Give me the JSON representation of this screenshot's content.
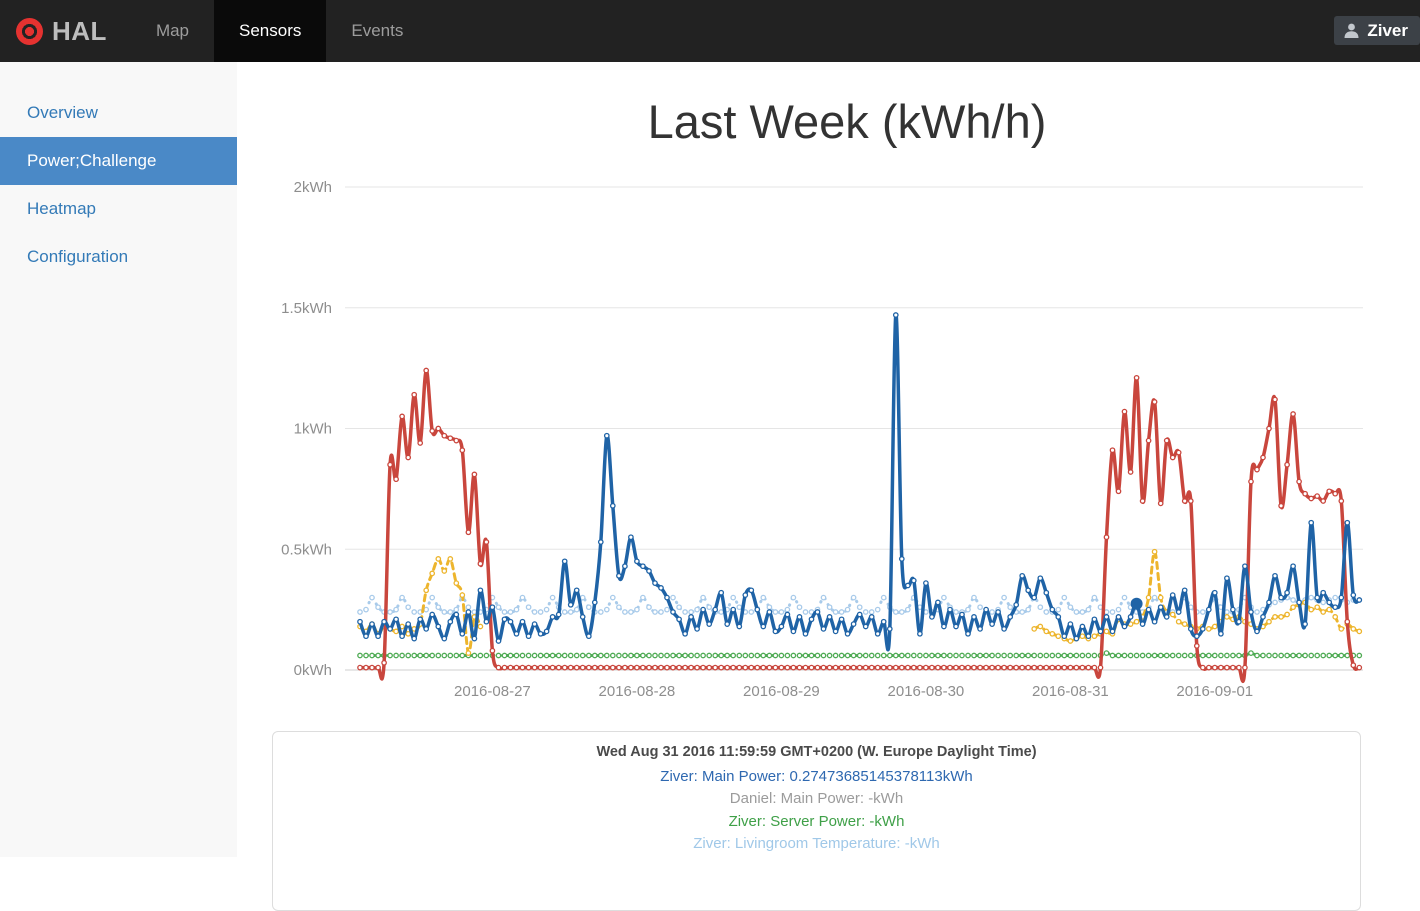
{
  "navbar": {
    "brand": "HAL",
    "tabs": [
      {
        "label": "Map",
        "active": false
      },
      {
        "label": "Sensors",
        "active": true
      },
      {
        "label": "Events",
        "active": false
      }
    ],
    "user": "Ziver"
  },
  "sidebar": {
    "items": [
      {
        "label": "Overview",
        "active": false
      },
      {
        "label": "Power;Challenge",
        "active": true
      },
      {
        "label": "Heatmap",
        "active": false
      },
      {
        "label": "Configuration",
        "active": false
      }
    ]
  },
  "chart_data": {
    "type": "line",
    "title": "Last Week (kWh/h)",
    "ylim": [
      0,
      2
    ],
    "grid": true,
    "y_ticks": [
      {
        "label": "0kWh",
        "value": 0
      },
      {
        "label": "0.5kWh",
        "value": 0.5
      },
      {
        "label": "1kWh",
        "value": 1
      },
      {
        "label": "1.5kWh",
        "value": 1.5
      },
      {
        "label": "2kWh",
        "value": 2
      }
    ],
    "x_ticks": [
      {
        "label": "2016-08-27",
        "index": 22
      },
      {
        "label": "2016-08-28",
        "index": 46
      },
      {
        "label": "2016-08-29",
        "index": 70
      },
      {
        "label": "2016-08-30",
        "index": 94
      },
      {
        "label": "2016-08-31",
        "index": 118
      },
      {
        "label": "2016-09-01",
        "index": 142
      }
    ],
    "unit": "kWh",
    "resolution": "hourly",
    "series": [
      {
        "id": "server-power-green",
        "name": "Ziver: Server Power",
        "color": "#4fab54",
        "style": "dotted",
        "values": [
          0.06,
          0.06,
          0.06,
          0.06,
          0.06,
          0.06,
          0.06,
          0.06,
          0.06,
          0.06,
          0.06,
          0.06,
          0.06,
          0.06,
          0.06,
          0.06,
          0.06,
          0.06,
          0.06,
          0.06,
          0.06,
          0.06,
          0.06,
          0.06,
          0.06,
          0.06,
          0.06,
          0.06,
          0.06,
          0.06,
          0.06,
          0.06,
          0.06,
          0.06,
          0.06,
          0.06,
          0.06,
          0.06,
          0.06,
          0.06,
          0.06,
          0.06,
          0.06,
          0.06,
          0.06,
          0.06,
          0.06,
          0.06,
          0.06,
          0.06,
          0.06,
          0.06,
          0.06,
          0.06,
          0.06,
          0.06,
          0.06,
          0.06,
          0.06,
          0.06,
          0.06,
          0.06,
          0.06,
          0.06,
          0.06,
          0.06,
          0.06,
          0.06,
          0.06,
          0.06,
          0.06,
          0.06,
          0.06,
          0.06,
          0.06,
          0.06,
          0.06,
          0.06,
          0.06,
          0.06,
          0.06,
          0.06,
          0.06,
          0.06,
          0.06,
          0.06,
          0.06,
          0.06,
          0.06,
          0.06,
          0.06,
          0.06,
          0.06,
          0.06,
          0.06,
          0.06,
          0.06,
          0.06,
          0.06,
          0.06,
          0.06,
          0.06,
          0.06,
          0.06,
          0.06,
          0.06,
          0.06,
          0.06,
          0.06,
          0.06,
          0.06,
          0.06,
          0.06,
          0.06,
          0.06,
          0.06,
          0.06,
          0.06,
          0.06,
          0.06,
          0.06,
          0.06,
          0.06,
          0.06,
          0.07,
          0.06,
          0.06,
          0.06,
          0.06,
          0.06,
          0.06,
          0.06,
          0.06,
          0.06,
          0.06,
          0.06,
          0.06,
          0.06,
          0.06,
          0.06,
          0.06,
          0.06,
          0.06,
          0.06,
          0.06,
          0.06,
          0.06,
          0.06,
          0.07,
          0.06,
          0.06,
          0.06,
          0.06,
          0.06,
          0.06,
          0.06,
          0.06,
          0.06,
          0.06,
          0.06,
          0.06,
          0.06,
          0.06,
          0.06,
          0.06,
          0.06,
          0.06
        ]
      },
      {
        "id": "livingroom-temp-lightblue",
        "name": "Ziver: Livingroom Temperature",
        "color": "#a9cbea",
        "style": "dotted",
        "values": [
          0.24,
          0.25,
          0.3,
          0.26,
          0.24,
          0.24,
          0.25,
          0.3,
          0.26,
          0.24,
          0.24,
          0.25,
          0.3,
          0.26,
          0.24,
          0.24,
          0.25,
          0.3,
          0.26,
          0.24,
          0.24,
          0.25,
          0.3,
          0.26,
          0.24,
          0.24,
          0.25,
          0.3,
          0.26,
          0.24,
          0.24,
          0.25,
          0.3,
          0.26,
          0.24,
          0.24,
          0.25,
          0.3,
          0.26,
          0.24,
          0.24,
          0.25,
          0.3,
          0.26,
          0.24,
          0.24,
          0.25,
          0.3,
          0.26,
          0.24,
          0.24,
          0.25,
          0.3,
          0.26,
          0.24,
          0.24,
          0.25,
          0.3,
          0.26,
          0.24,
          0.24,
          0.25,
          0.3,
          0.26,
          0.24,
          0.24,
          0.25,
          0.3,
          0.26,
          0.24,
          0.24,
          0.25,
          0.3,
          0.26,
          0.24,
          0.24,
          0.25,
          0.3,
          0.26,
          0.24,
          0.24,
          0.25,
          0.3,
          0.26,
          0.24,
          0.24,
          0.25,
          0.3,
          0.26,
          0.24,
          0.24,
          0.25,
          0.3,
          0.26,
          0.24,
          0.24,
          0.25,
          0.3,
          0.26,
          0.24,
          0.24,
          0.25,
          0.3,
          0.26,
          0.24,
          0.24,
          0.25,
          0.3,
          0.26,
          0.24,
          0.24,
          0.25,
          0.3,
          0.26,
          0.24,
          0.24,
          0.25,
          0.3,
          0.26,
          0.24,
          0.24,
          0.25,
          0.3,
          0.26,
          0.24,
          0.24,
          0.25,
          0.3,
          0.26,
          0.24,
          0.24,
          0.25,
          0.3,
          0.26,
          0.24,
          0.24,
          0.25,
          0.3,
          0.26,
          0.24,
          0.24,
          0.25,
          0.3,
          0.26,
          0.24,
          0.24,
          0.25,
          0.3,
          0.26,
          0.24,
          0.25,
          0.27,
          0.28,
          0.29,
          0.3,
          0.29,
          0.28,
          0.29,
          0.3,
          0.29,
          0.28,
          0.29,
          0.3,
          0.29,
          0.28,
          0.29,
          0.29
        ]
      },
      {
        "id": "yellow-series",
        "name": "",
        "color": "#edb52d",
        "style": "dashed",
        "values": [
          0.18,
          0.16,
          0.19,
          0.15,
          0.18,
          0.17,
          0.16,
          0.18,
          0.15,
          0.17,
          0.19,
          0.33,
          0.4,
          0.46,
          0.41,
          0.46,
          0.36,
          0.31,
          0.07,
          0.22,
          0.18,
          null,
          null,
          null,
          null,
          null,
          null,
          null,
          null,
          null,
          null,
          null,
          null,
          null,
          null,
          null,
          null,
          null,
          null,
          null,
          null,
          null,
          null,
          null,
          null,
          null,
          null,
          null,
          null,
          null,
          null,
          null,
          null,
          null,
          null,
          null,
          null,
          null,
          null,
          null,
          null,
          null,
          null,
          null,
          null,
          null,
          null,
          null,
          null,
          null,
          null,
          null,
          null,
          null,
          null,
          null,
          null,
          null,
          null,
          null,
          null,
          null,
          null,
          null,
          null,
          null,
          null,
          null,
          null,
          null,
          null,
          null,
          null,
          null,
          null,
          null,
          null,
          null,
          null,
          null,
          null,
          null,
          null,
          null,
          null,
          null,
          null,
          null,
          null,
          null,
          null,
          null,
          0.17,
          0.18,
          0.16,
          0.15,
          0.14,
          0.13,
          0.12,
          0.13,
          0.14,
          0.13,
          0.14,
          0.15,
          0.16,
          0.15,
          0.21,
          0.19,
          0.19,
          0.2,
          0.22,
          0.3,
          0.49,
          0.3,
          0.24,
          0.23,
          0.2,
          0.19,
          0.18,
          0.17,
          0.18,
          0.17,
          0.18,
          0.2,
          0.22,
          0.21,
          0.22,
          0.2,
          0.19,
          0.17,
          0.18,
          0.2,
          0.22,
          0.22,
          0.23,
          0.26,
          0.27,
          0.28,
          0.25,
          0.26,
          0.24,
          0.25,
          0.22,
          0.17,
          0.19,
          0.17,
          0.16
        ]
      },
      {
        "id": "red-series",
        "name": "",
        "color": "#c9463d",
        "style": "solid",
        "values": [
          0.01,
          0.01,
          0.01,
          0.01,
          0.03,
          0.85,
          0.79,
          1.05,
          0.88,
          1.14,
          0.94,
          1.24,
          0.99,
          1.0,
          0.97,
          0.96,
          0.95,
          0.91,
          0.57,
          0.81,
          0.44,
          0.53,
          0.08,
          0.01,
          0.01,
          0.01,
          0.01,
          0.01,
          0.01,
          0.01,
          0.01,
          0.01,
          0.01,
          0.01,
          0.01,
          0.01,
          0.01,
          0.01,
          0.01,
          0.01,
          0.01,
          0.01,
          0.01,
          0.01,
          0.01,
          0.01,
          0.01,
          0.01,
          0.01,
          0.01,
          0.01,
          0.01,
          0.01,
          0.01,
          0.01,
          0.01,
          0.01,
          0.01,
          0.01,
          0.01,
          0.01,
          0.01,
          0.01,
          0.01,
          0.01,
          0.01,
          0.01,
          0.01,
          0.01,
          0.01,
          0.01,
          0.01,
          0.01,
          0.01,
          0.01,
          0.01,
          0.01,
          0.01,
          0.01,
          0.01,
          0.01,
          0.01,
          0.01,
          0.01,
          0.01,
          0.01,
          0.01,
          0.01,
          0.01,
          0.01,
          0.01,
          0.01,
          0.01,
          0.01,
          0.01,
          0.01,
          0.01,
          0.01,
          0.01,
          0.01,
          0.01,
          0.01,
          0.01,
          0.01,
          0.01,
          0.01,
          0.01,
          0.01,
          0.01,
          0.01,
          0.01,
          0.01,
          0.01,
          0.01,
          0.01,
          0.01,
          0.01,
          0.01,
          0.01,
          0.01,
          0.01,
          0.01,
          0.01,
          0.01,
          0.55,
          0.91,
          0.74,
          1.07,
          0.82,
          1.21,
          0.7,
          0.95,
          1.11,
          0.69,
          0.95,
          0.88,
          0.9,
          0.7,
          0.7,
          0.1,
          0.01,
          0.01,
          0.01,
          0.01,
          0.01,
          0.01,
          0.01,
          0.01,
          0.78,
          0.83,
          0.88,
          1.0,
          1.12,
          0.68,
          0.85,
          1.06,
          0.78,
          0.73,
          0.71,
          0.72,
          0.7,
          0.74,
          0.73,
          0.7,
          0.2,
          0.02,
          0.01
        ]
      },
      {
        "id": "main-power-blue",
        "name": "Ziver: Main Power",
        "color": "#1f63a6",
        "style": "solid",
        "selected_index": 129,
        "values": [
          0.2,
          0.14,
          0.19,
          0.14,
          0.2,
          0.17,
          0.21,
          0.14,
          0.19,
          0.13,
          0.21,
          0.17,
          0.23,
          0.18,
          0.13,
          0.2,
          0.23,
          0.15,
          0.24,
          0.13,
          0.33,
          0.2,
          0.26,
          0.12,
          0.21,
          0.2,
          0.15,
          0.2,
          0.14,
          0.19,
          0.15,
          0.16,
          0.22,
          0.23,
          0.45,
          0.27,
          0.33,
          0.22,
          0.14,
          0.28,
          0.53,
          0.97,
          0.68,
          0.39,
          0.43,
          0.55,
          0.45,
          0.43,
          0.41,
          0.36,
          0.34,
          0.3,
          0.24,
          0.21,
          0.15,
          0.22,
          0.17,
          0.25,
          0.19,
          0.25,
          0.32,
          0.19,
          0.25,
          0.18,
          0.31,
          0.33,
          0.25,
          0.18,
          0.24,
          0.16,
          0.18,
          0.23,
          0.16,
          0.22,
          0.15,
          0.21,
          0.24,
          0.17,
          0.22,
          0.16,
          0.21,
          0.15,
          0.19,
          0.23,
          0.18,
          0.22,
          0.15,
          0.2,
          0.17,
          1.47,
          0.46,
          0.35,
          0.37,
          0.15,
          0.36,
          0.22,
          0.28,
          0.18,
          0.25,
          0.18,
          0.23,
          0.15,
          0.22,
          0.17,
          0.25,
          0.19,
          0.24,
          0.17,
          0.22,
          0.27,
          0.39,
          0.33,
          0.3,
          0.38,
          0.32,
          0.25,
          0.22,
          0.14,
          0.19,
          0.13,
          0.18,
          0.14,
          0.21,
          0.16,
          0.22,
          0.16,
          0.22,
          0.18,
          0.22,
          0.2747,
          0.19,
          0.25,
          0.2,
          0.26,
          0.22,
          0.31,
          0.24,
          0.33,
          0.17,
          0.14,
          0.17,
          0.25,
          0.32,
          0.15,
          0.38,
          0.25,
          0.2,
          0.43,
          0.24,
          0.16,
          0.22,
          0.28,
          0.39,
          0.3,
          0.32,
          0.43,
          0.28,
          0.19,
          0.61,
          0.3,
          0.32,
          0.28,
          0.26,
          0.3,
          0.61,
          0.31,
          0.29
        ]
      }
    ]
  },
  "tooltip": {
    "header": "Wed Aug 31 2016 11:59:59 GMT+0200 (W. Europe Daylight Time)",
    "rows": [
      {
        "text": "Ziver: Main Power: 0.27473685145378113kWh",
        "color": "#2e68b0"
      },
      {
        "text": "Daniel: Main Power: -kWh",
        "color": "#9b9b9b"
      },
      {
        "text": "Ziver: Server Power: -kWh",
        "color": "#3fa048"
      },
      {
        "text": "Ziver: Livingroom Temperature: -kWh",
        "color": "#a0c8e8"
      }
    ]
  },
  "colors": {
    "navbar_bg": "#222222",
    "navbar_active_bg": "#0a0a0a",
    "sidebar_bg": "#f8f8f8",
    "sidebar_active_bg": "#4a89c7",
    "link_blue": "#337ab7"
  }
}
